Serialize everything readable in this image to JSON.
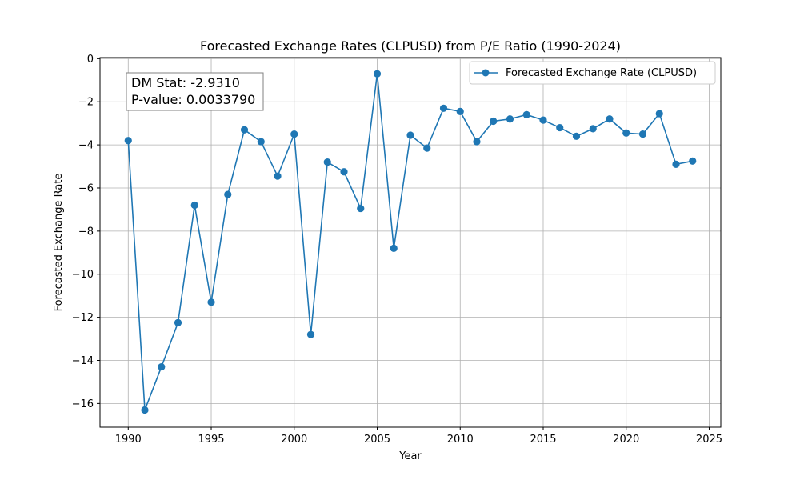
{
  "chart_data": {
    "type": "line",
    "title": "Forecasted Exchange Rates (CLPUSD) from P/E Ratio (1990-2024)",
    "xlabel": "Year",
    "ylabel": "Forecasted Exchange Rate",
    "xlim": [
      1988.3,
      2025.7
    ],
    "ylim": [
      -17.1,
      0.05
    ],
    "xticks": [
      1990,
      1995,
      2000,
      2005,
      2010,
      2015,
      2020,
      2025
    ],
    "yticks": [
      0,
      -2,
      -4,
      -6,
      -8,
      -10,
      -12,
      -14,
      -16
    ],
    "ytick_labels": [
      "0",
      "−2",
      "−4",
      "−6",
      "−8",
      "−10",
      "−12",
      "−14",
      "−16"
    ],
    "grid": true,
    "legend_position": "top-right",
    "series": [
      {
        "name": "Forecasted Exchange Rate (CLPUSD)",
        "color": "#1f77b4",
        "marker": "circle",
        "x": [
          1990,
          1991,
          1992,
          1993,
          1994,
          1995,
          1996,
          1997,
          1998,
          1999,
          2000,
          2001,
          2002,
          2003,
          2004,
          2005,
          2006,
          2007,
          2008,
          2009,
          2010,
          2011,
          2012,
          2013,
          2014,
          2015,
          2016,
          2017,
          2018,
          2019,
          2020,
          2021,
          2022,
          2023,
          2024
        ],
        "y": [
          -3.8,
          -16.3,
          -14.3,
          -12.25,
          -6.8,
          -11.3,
          -6.3,
          -3.3,
          -3.85,
          -5.45,
          -3.5,
          -12.8,
          -4.8,
          -5.25,
          -6.95,
          -0.7,
          -8.8,
          -3.55,
          -4.15,
          -2.3,
          -2.45,
          -3.85,
          -2.9,
          -2.8,
          -2.6,
          -2.85,
          -3.2,
          -3.6,
          -3.25,
          -2.8,
          -3.45,
          -3.5,
          -2.55,
          -4.9,
          -4.75
        ]
      }
    ],
    "annotation": {
      "line1": "DM Stat: -2.9310",
      "line2": "P-value: 0.0033790"
    }
  }
}
